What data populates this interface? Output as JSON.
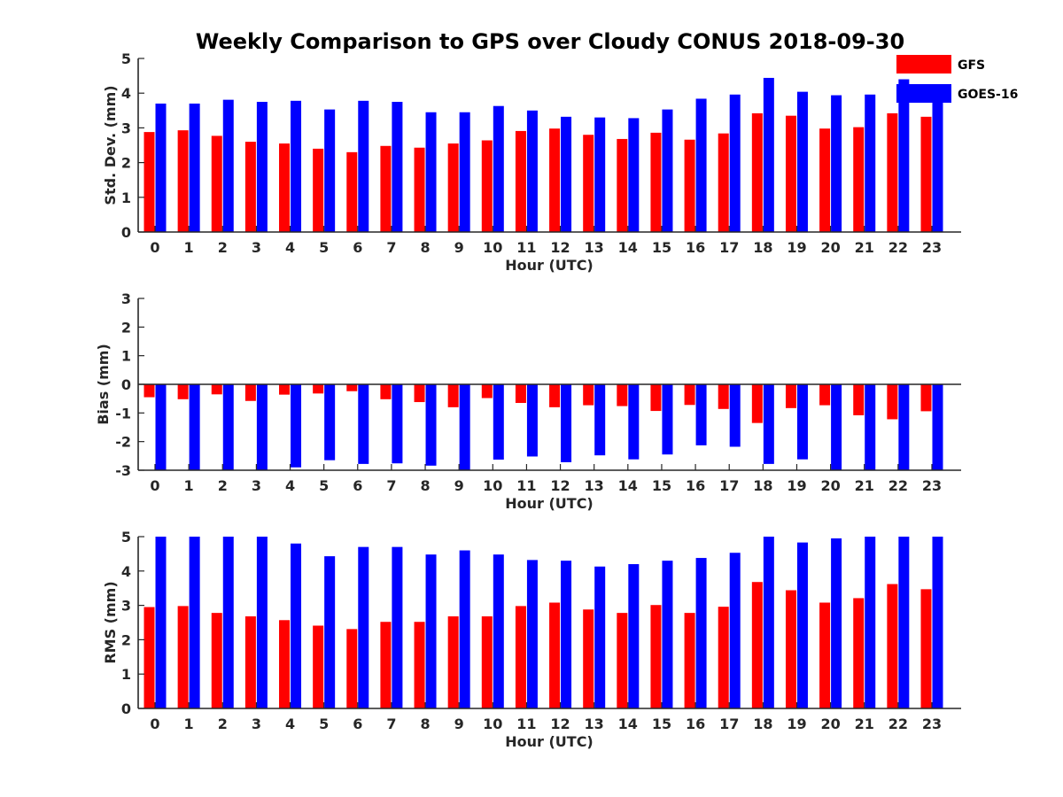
{
  "figure_title": "Weekly Comparison to GPS over Cloudy CONUS 2018-09-30",
  "colors": {
    "GFS": "#ff0000",
    "GOES-16": "#0000ff",
    "axis": "#262626"
  },
  "legend": [
    "GFS",
    "GOES-16"
  ],
  "legend_placement": "top-right, outside axes",
  "chart_data": [
    {
      "type": "bar",
      "xlabel": "Hour (UTC)",
      "ylabel": "Std. Dev. (mm)",
      "ylim": [
        0,
        5
      ],
      "yticks": [
        "0",
        "1",
        "2",
        "3",
        "4",
        "5"
      ],
      "grid": false,
      "categories": [
        "0",
        "1",
        "2",
        "3",
        "4",
        "5",
        "6",
        "7",
        "8",
        "9",
        "10",
        "11",
        "12",
        "13",
        "14",
        "15",
        "16",
        "17",
        "18",
        "19",
        "20",
        "21",
        "22",
        "23"
      ],
      "series": [
        {
          "name": "GFS",
          "values": [
            2.88,
            2.93,
            2.77,
            2.6,
            2.55,
            2.4,
            2.3,
            2.48,
            2.43,
            2.55,
            2.64,
            2.91,
            2.98,
            2.8,
            2.68,
            2.86,
            2.66,
            2.84,
            3.42,
            3.35,
            2.98,
            3.02,
            3.42,
            3.32
          ]
        },
        {
          "name": "GOES-16",
          "values": [
            3.7,
            3.7,
            3.81,
            3.75,
            3.78,
            3.53,
            3.78,
            3.75,
            3.45,
            3.45,
            3.63,
            3.5,
            3.32,
            3.3,
            3.28,
            3.53,
            3.84,
            3.96,
            4.44,
            4.04,
            3.94,
            3.96,
            4.4,
            3.8
          ]
        }
      ]
    },
    {
      "type": "bar",
      "xlabel": "Hour (UTC)",
      "ylabel": "Bias (mm)",
      "ylim": [
        -3,
        3
      ],
      "yticks": [
        "-3",
        "-2",
        "-1",
        "0",
        "1",
        "2",
        "3"
      ],
      "grid": false,
      "categories": [
        "0",
        "1",
        "2",
        "3",
        "4",
        "5",
        "6",
        "7",
        "8",
        "9",
        "10",
        "11",
        "12",
        "13",
        "14",
        "15",
        "16",
        "17",
        "18",
        "19",
        "20",
        "21",
        "22",
        "23"
      ],
      "series": [
        {
          "name": "GFS",
          "values": [
            -0.45,
            -0.52,
            -0.35,
            -0.58,
            -0.36,
            -0.32,
            -0.24,
            -0.52,
            -0.62,
            -0.8,
            -0.48,
            -0.65,
            -0.8,
            -0.73,
            -0.76,
            -0.93,
            -0.72,
            -0.86,
            -1.35,
            -0.83,
            -0.73,
            -1.08,
            -1.22,
            -0.94
          ]
        },
        {
          "name": "GOES-16",
          "values": [
            -3.0,
            -3.0,
            -3.0,
            -3.0,
            -2.9,
            -2.65,
            -2.78,
            -2.76,
            -2.84,
            -3.0,
            -2.63,
            -2.52,
            -2.72,
            -2.48,
            -2.62,
            -2.45,
            -2.13,
            -2.18,
            -2.78,
            -2.62,
            -3.0,
            -3.0,
            -3.0,
            -3.0
          ]
        }
      ]
    },
    {
      "type": "bar",
      "xlabel": "Hour (UTC)",
      "ylabel": "RMS (mm)",
      "ylim": [
        0,
        5
      ],
      "yticks": [
        "0",
        "1",
        "2",
        "3",
        "4",
        "5"
      ],
      "grid": false,
      "categories": [
        "0",
        "1",
        "2",
        "3",
        "4",
        "5",
        "6",
        "7",
        "8",
        "9",
        "10",
        "11",
        "12",
        "13",
        "14",
        "15",
        "16",
        "17",
        "18",
        "19",
        "20",
        "21",
        "22",
        "23"
      ],
      "series": [
        {
          "name": "GFS",
          "values": [
            2.95,
            2.98,
            2.78,
            2.68,
            2.57,
            2.41,
            2.31,
            2.52,
            2.52,
            2.68,
            2.68,
            2.98,
            3.08,
            2.88,
            2.78,
            3.01,
            2.78,
            2.96,
            3.68,
            3.44,
            3.08,
            3.21,
            3.62,
            3.47
          ]
        },
        {
          "name": "GOES-16",
          "values": [
            5.0,
            5.0,
            5.0,
            5.0,
            4.8,
            4.43,
            4.7,
            4.7,
            4.48,
            4.6,
            4.48,
            4.32,
            4.3,
            4.13,
            4.2,
            4.3,
            4.38,
            4.53,
            5.0,
            4.83,
            4.95,
            5.0,
            5.0,
            5.0
          ]
        }
      ]
    }
  ]
}
